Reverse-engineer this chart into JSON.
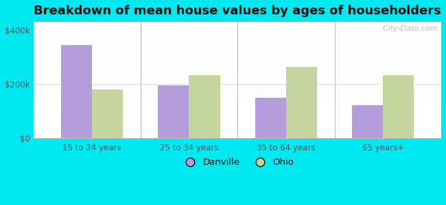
{
  "title": "Breakdown of mean house values by ages of householders",
  "categories": [
    "15 to 24 years",
    "25 to 34 years",
    "35 to 64 years",
    "65 years+"
  ],
  "danville_values": [
    345000,
    195000,
    148000,
    120000
  ],
  "ohio_values": [
    178000,
    232000,
    262000,
    232000
  ],
  "danville_color": "#b39ddb",
  "ohio_color": "#c5d5a0",
  "outer_bg": "#00e8f0",
  "yticks": [
    0,
    200000,
    400000
  ],
  "ytick_labels": [
    "$0",
    "$200k",
    "$400k"
  ],
  "ylim": [
    0,
    430000
  ],
  "bar_width": 0.32,
  "title_fontsize": 13,
  "watermark": "  City-Data.com"
}
